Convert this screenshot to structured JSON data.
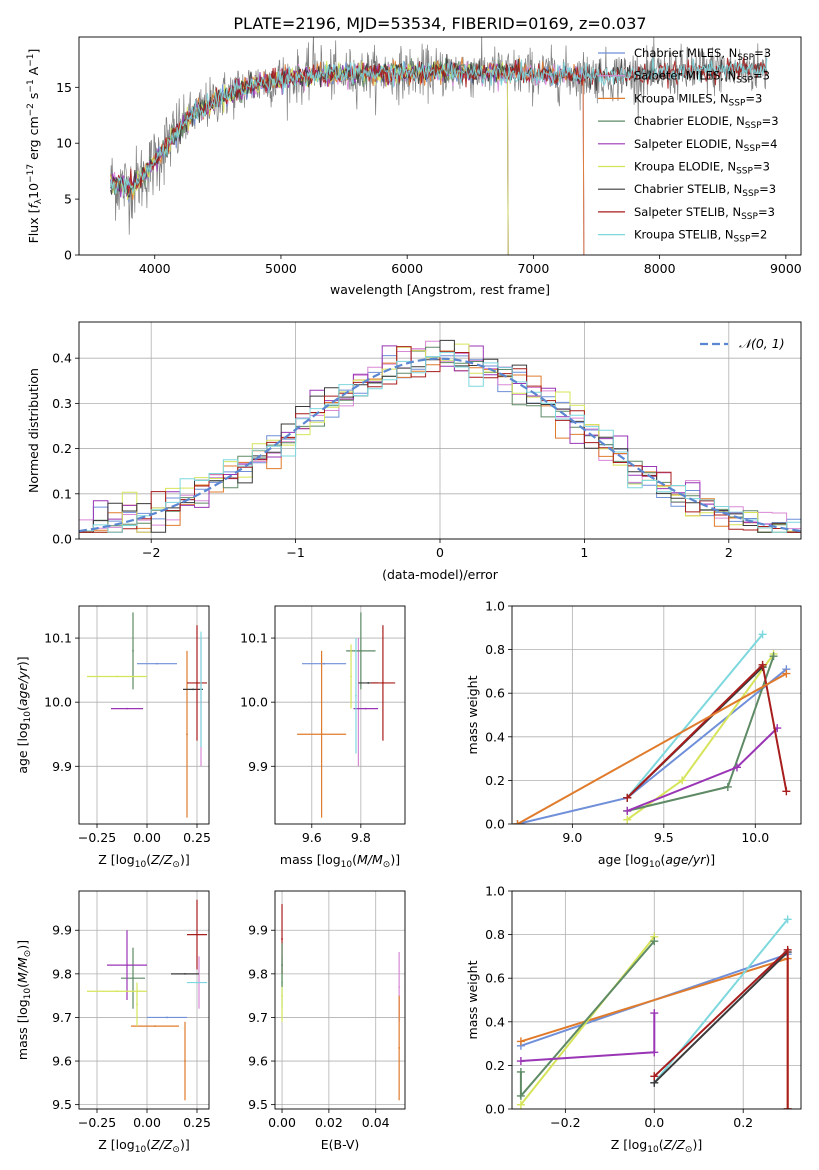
{
  "figure": {
    "title": "PLATE=2196, MJD=53534, FIBERID=0169, z=0.037"
  },
  "colors": {
    "chabrier_miles": "#6f8fd8",
    "salpeter_miles": "#d988d6",
    "kroupa_miles": "#e07b2c",
    "chabrier_elodie": "#5e8a65",
    "salpeter_elodie": "#9a35b5",
    "kroupa_elodie": "#d6e45a",
    "chabrier_stelib": "#3a3a3a",
    "salpeter_stelib": "#a81d1d",
    "kroupa_stelib": "#7dd8de",
    "data_spectrum": "#7f7f7f",
    "normal_curve": "#5b87d1"
  },
  "models": [
    {
      "label": "Chabrier MILES, N",
      "sub": "SSP",
      "suffix": "=3",
      "color": "#6f8fd8"
    },
    {
      "label": "Salpeter MILES, N",
      "sub": "SSP",
      "suffix": "=3",
      "color": "#d988d6"
    },
    {
      "label": "Kroupa MILES, N",
      "sub": "SSP",
      "suffix": "=3",
      "color": "#e07b2c"
    },
    {
      "label": "Chabrier ELODIE, N",
      "sub": "SSP",
      "suffix": "=3",
      "color": "#5e8a65"
    },
    {
      "label": "Salpeter ELODIE, N",
      "sub": "SSP",
      "suffix": "=4",
      "color": "#9a35b5"
    },
    {
      "label": "Kroupa ELODIE, N",
      "sub": "SSP",
      "suffix": "=3",
      "color": "#d6e45a"
    },
    {
      "label": "Chabrier STELIB, N",
      "sub": "SSP",
      "suffix": "=3",
      "color": "#3a3a3a"
    },
    {
      "label": "Salpeter STELIB, N",
      "sub": "SSP",
      "suffix": "=3",
      "color": "#a81d1d"
    },
    {
      "label": "Kroupa STELIB, N",
      "sub": "SSP",
      "suffix": "=2",
      "color": "#7dd8de"
    }
  ],
  "chart_data": [
    {
      "id": "spectrum",
      "type": "line",
      "title": "PLATE=2196, MJD=53534, FIBERID=0169, z=0.037",
      "xlabel": "wavelength [Angstrom, rest frame]",
      "ylabel": "Flux [f_λ 10^-17 erg cm^-2 s^-1 A^-1]",
      "xlim": [
        3400,
        9120
      ],
      "ylim": [
        0,
        19.5
      ],
      "xticks": [
        4000,
        5000,
        6000,
        7000,
        8000,
        9000
      ],
      "yticks": [
        0,
        5,
        10,
        15
      ],
      "grid": false,
      "legend_position": "top-right",
      "continuum": {
        "x": [
          3650,
          3800,
          3950,
          4100,
          4300,
          4500,
          4700,
          5000,
          5300,
          5600,
          6000,
          6400,
          6800,
          7200,
          7600,
          8000,
          8400,
          8850
        ],
        "y": [
          6.5,
          6.0,
          7.5,
          10.0,
          12.5,
          14.0,
          15.0,
          15.8,
          16.1,
          16.2,
          16.3,
          16.4,
          16.3,
          16.1,
          16.0,
          16.2,
          16.5,
          16.6
        ]
      },
      "model_coverage_end": {
        "MILES": 7400,
        "ELODIE": 6800,
        "STELIB": 8850
      }
    },
    {
      "id": "residuals",
      "type": "histogram",
      "xlabel": "(data-model)/error",
      "ylabel": "Normed distribution",
      "xlim": [
        -2.5,
        2.5
      ],
      "ylim": [
        0,
        0.48
      ],
      "xticks": [
        -2,
        -1,
        0,
        1,
        2
      ],
      "yticks": [
        0.0,
        0.1,
        0.2,
        0.3,
        0.4
      ],
      "grid": true,
      "legend_position": "top-right",
      "reference_curve": {
        "name": "𝒩(0, 1)",
        "mean": 0,
        "sigma": 1
      },
      "bin_width": 0.1
    },
    {
      "id": "age_vs_Z",
      "type": "errorbar",
      "xlabel": "Z [log10(Z/Z☉)]",
      "ylabel": "age [log10(age/yr)]",
      "xlim": [
        -0.34,
        0.31
      ],
      "ylim": [
        9.81,
        10.15
      ],
      "xticks": [
        -0.25,
        0.0,
        0.25
      ],
      "yticks": [
        9.9,
        10.0,
        10.1
      ],
      "grid": true,
      "points": [
        {
          "x": 0.05,
          "xerr": 0.1,
          "y": 10.06,
          "yerr": 0.0,
          "color": "#6f8fd8"
        },
        {
          "x": 0.27,
          "xerr": 0.0,
          "y": 10.0,
          "yerr": 0.1,
          "color": "#d988d6"
        },
        {
          "x": 0.2,
          "xerr": 0.0,
          "y": 9.95,
          "yerr": 0.13,
          "color": "#e07b2c"
        },
        {
          "x": -0.07,
          "xerr": 0.0,
          "y": 10.08,
          "yerr": 0.06,
          "color": "#5e8a65"
        },
        {
          "x": -0.1,
          "xerr": 0.08,
          "y": 9.99,
          "yerr": 0.0,
          "color": "#9a35b5"
        },
        {
          "x": -0.15,
          "xerr": 0.15,
          "y": 10.04,
          "yerr": 0.0,
          "color": "#d6e45a"
        },
        {
          "x": 0.23,
          "xerr": 0.05,
          "y": 10.02,
          "yerr": 0.0,
          "color": "#3a3a3a"
        },
        {
          "x": 0.25,
          "xerr": 0.05,
          "y": 10.03,
          "yerr": 0.09,
          "color": "#a81d1d"
        },
        {
          "x": 0.27,
          "xerr": 0.0,
          "y": 10.02,
          "yerr": 0.09,
          "color": "#7dd8de"
        }
      ]
    },
    {
      "id": "age_vs_mass",
      "type": "errorbar",
      "xlabel": "mass [log10(M/M☉)]",
      "ylabel": "",
      "xlim": [
        9.45,
        9.98
      ],
      "ylim": [
        9.81,
        10.15
      ],
      "xticks": [
        9.6,
        9.8
      ],
      "yticks": [
        9.9,
        10.0,
        10.1
      ],
      "grid": true,
      "points": [
        {
          "x": 9.65,
          "xerr": 0.09,
          "y": 10.06,
          "yerr": 0.0,
          "color": "#6f8fd8"
        },
        {
          "x": 9.79,
          "xerr": 0.0,
          "y": 10.0,
          "yerr": 0.1,
          "color": "#d988d6"
        },
        {
          "x": 9.64,
          "xerr": 0.1,
          "y": 9.95,
          "yerr": 0.13,
          "color": "#e07b2c"
        },
        {
          "x": 9.8,
          "xerr": 0.06,
          "y": 10.08,
          "yerr": 0.06,
          "color": "#5e8a65"
        },
        {
          "x": 9.82,
          "xerr": 0.05,
          "y": 9.99,
          "yerr": 0.0,
          "color": "#9a35b5"
        },
        {
          "x": 9.76,
          "xerr": 0.0,
          "y": 10.04,
          "yerr": 0.05,
          "color": "#d6e45a"
        },
        {
          "x": 9.83,
          "xerr": 0.04,
          "y": 10.03,
          "yerr": 0.0,
          "color": "#3a3a3a"
        },
        {
          "x": 9.89,
          "xerr": 0.05,
          "y": 10.03,
          "yerr": 0.09,
          "color": "#a81d1d"
        },
        {
          "x": 9.78,
          "xerr": 0.0,
          "y": 10.01,
          "yerr": 0.09,
          "color": "#7dd8de"
        }
      ]
    },
    {
      "id": "weight_vs_age",
      "type": "line",
      "xlabel": "age [log10(age/yr)]",
      "ylabel": "mass weight",
      "xlim": [
        8.67,
        10.25
      ],
      "ylim": [
        0,
        1.0
      ],
      "xticks": [
        9.0,
        9.5,
        10.0
      ],
      "yticks": [
        0.0,
        0.2,
        0.4,
        0.6,
        0.8,
        1.0
      ],
      "grid": true,
      "series": [
        {
          "color": "#6f8fd8",
          "points": [
            [
              8.7,
              0.0
            ],
            [
              9.3,
              0.12
            ],
            [
              10.17,
              0.71
            ]
          ]
        },
        {
          "color": "#7dd8de",
          "points": [
            [
              9.3,
              0.12
            ],
            [
              10.04,
              0.87
            ]
          ]
        },
        {
          "color": "#d6e45a",
          "points": [
            [
              9.3,
              0.02
            ],
            [
              9.6,
              0.2
            ],
            [
              10.1,
              0.78
            ]
          ]
        },
        {
          "color": "#5e8a65",
          "points": [
            [
              9.3,
              0.06
            ],
            [
              9.85,
              0.17
            ],
            [
              10.1,
              0.77
            ]
          ]
        },
        {
          "color": "#9a35b5",
          "points": [
            [
              9.3,
              0.06
            ],
            [
              9.9,
              0.26
            ],
            [
              10.12,
              0.44
            ]
          ]
        },
        {
          "color": "#3a3a3a",
          "points": [
            [
              9.3,
              0.12
            ],
            [
              10.04,
              0.72
            ]
          ]
        },
        {
          "color": "#a81d1d",
          "points": [
            [
              9.3,
              0.12
            ],
            [
              10.04,
              0.73
            ],
            [
              10.17,
              0.15
            ]
          ]
        },
        {
          "color": "#e07b2c",
          "points": [
            [
              8.7,
              0.0
            ],
            [
              10.17,
              0.69
            ]
          ]
        }
      ]
    },
    {
      "id": "mass_vs_Z",
      "type": "errorbar",
      "xlabel": "Z [log10(Z/Z☉)]",
      "ylabel": "mass [log10(M/M☉)]",
      "xlim": [
        -0.34,
        0.31
      ],
      "ylim": [
        9.49,
        9.99
      ],
      "xticks": [
        -0.25,
        0.0,
        0.25
      ],
      "yticks": [
        9.5,
        9.6,
        9.7,
        9.8,
        9.9
      ],
      "grid": true,
      "points": [
        {
          "x": 0.1,
          "xerr": 0.1,
          "y": 9.7,
          "yerr": 0.0,
          "color": "#6f8fd8"
        },
        {
          "x": 0.26,
          "xerr": 0.0,
          "y": 9.78,
          "yerr": 0.06,
          "color": "#d988d6"
        },
        {
          "x": 0.04,
          "xerr": 0.12,
          "y": 9.68,
          "yerr": 0.0,
          "color": "#e07b2c"
        },
        {
          "x": 0.19,
          "xerr": 0.0,
          "y": 9.6,
          "yerr": 0.09,
          "color": "#e07b2c"
        },
        {
          "x": -0.07,
          "xerr": 0.06,
          "y": 9.79,
          "yerr": 0.07,
          "color": "#5e8a65"
        },
        {
          "x": -0.1,
          "xerr": 0.1,
          "y": 9.82,
          "yerr": 0.08,
          "color": "#9a35b5"
        },
        {
          "x": -0.15,
          "xerr": 0.15,
          "y": 9.76,
          "yerr": 0.0,
          "color": "#d6e45a"
        },
        {
          "x": -0.05,
          "xerr": 0.0,
          "y": 9.73,
          "yerr": 0.05,
          "color": "#d6e45a"
        },
        {
          "x": 0.19,
          "xerr": 0.07,
          "y": 9.8,
          "yerr": 0.0,
          "color": "#3a3a3a"
        },
        {
          "x": 0.25,
          "xerr": 0.05,
          "y": 9.89,
          "yerr": 0.08,
          "color": "#a81d1d"
        },
        {
          "x": 0.25,
          "xerr": 0.05,
          "y": 9.78,
          "yerr": 0.0,
          "color": "#7dd8de"
        }
      ]
    },
    {
      "id": "mass_vs_ebv",
      "type": "errorbar",
      "xlabel": "E(B-V)",
      "ylabel": "",
      "xlim": [
        -0.003,
        0.0525
      ],
      "ylim": [
        9.49,
        9.99
      ],
      "xticks": [
        0.0,
        0.02,
        0.04
      ],
      "yticks": [
        9.5,
        9.6,
        9.7,
        9.8,
        9.9
      ],
      "grid": true,
      "points": [
        {
          "x": 0.0,
          "xerr": 0.0,
          "y": 9.78,
          "yerr": 0.06,
          "color": "#7dd8de"
        },
        {
          "x": 0.0,
          "xerr": 0.0,
          "y": 9.75,
          "yerr": 0.06,
          "color": "#d6e45a"
        },
        {
          "x": 0.0,
          "xerr": 0.0,
          "y": 9.88,
          "yerr": 0.08,
          "color": "#a81d1d"
        },
        {
          "x": 0.0,
          "xerr": 0.0,
          "y": 9.82,
          "yerr": 0.05,
          "color": "#5e8a65"
        },
        {
          "x": 0.05,
          "xerr": 0.0,
          "y": 9.77,
          "yerr": 0.08,
          "color": "#d988d6"
        },
        {
          "x": 0.05,
          "xerr": 0.0,
          "y": 9.63,
          "yerr": 0.12,
          "color": "#e07b2c"
        }
      ]
    },
    {
      "id": "weight_vs_Z",
      "type": "line",
      "xlabel": "Z [log10(Z/Z☉)]",
      "ylabel": "mass weight",
      "xlim": [
        -0.32,
        0.33
      ],
      "ylim": [
        0,
        1.0
      ],
      "xticks": [
        -0.2,
        0.0,
        0.2
      ],
      "yticks": [
        0.0,
        0.2,
        0.4,
        0.6,
        0.8,
        1.0
      ],
      "grid": true,
      "series": [
        {
          "color": "#6f8fd8",
          "points": [
            [
              -0.3,
              0.29
            ],
            [
              0.3,
              0.71
            ]
          ]
        },
        {
          "color": "#e07b2c",
          "points": [
            [
              -0.3,
              0.31
            ],
            [
              0.3,
              0.69
            ],
            [
              0.3,
              0.0
            ]
          ]
        },
        {
          "color": "#7dd8de",
          "points": [
            [
              0.0,
              0.12
            ],
            [
              0.3,
              0.87
            ]
          ]
        },
        {
          "color": "#d6e45a",
          "points": [
            [
              -0.3,
              0.02
            ],
            [
              0.0,
              0.79
            ]
          ]
        },
        {
          "color": "#5e8a65",
          "points": [
            [
              -0.3,
              0.17
            ],
            [
              -0.3,
              0.06
            ],
            [
              0.0,
              0.77
            ]
          ]
        },
        {
          "color": "#9a35b5",
          "points": [
            [
              -0.3,
              0.22
            ],
            [
              0.0,
              0.26
            ],
            [
              0.0,
              0.44
            ]
          ]
        },
        {
          "color": "#3a3a3a",
          "points": [
            [
              0.0,
              0.12
            ],
            [
              0.3,
              0.72
            ]
          ]
        },
        {
          "color": "#a81d1d",
          "points": [
            [
              0.0,
              0.15
            ],
            [
              0.3,
              0.73
            ],
            [
              0.3,
              0.0
            ]
          ]
        }
      ]
    }
  ]
}
